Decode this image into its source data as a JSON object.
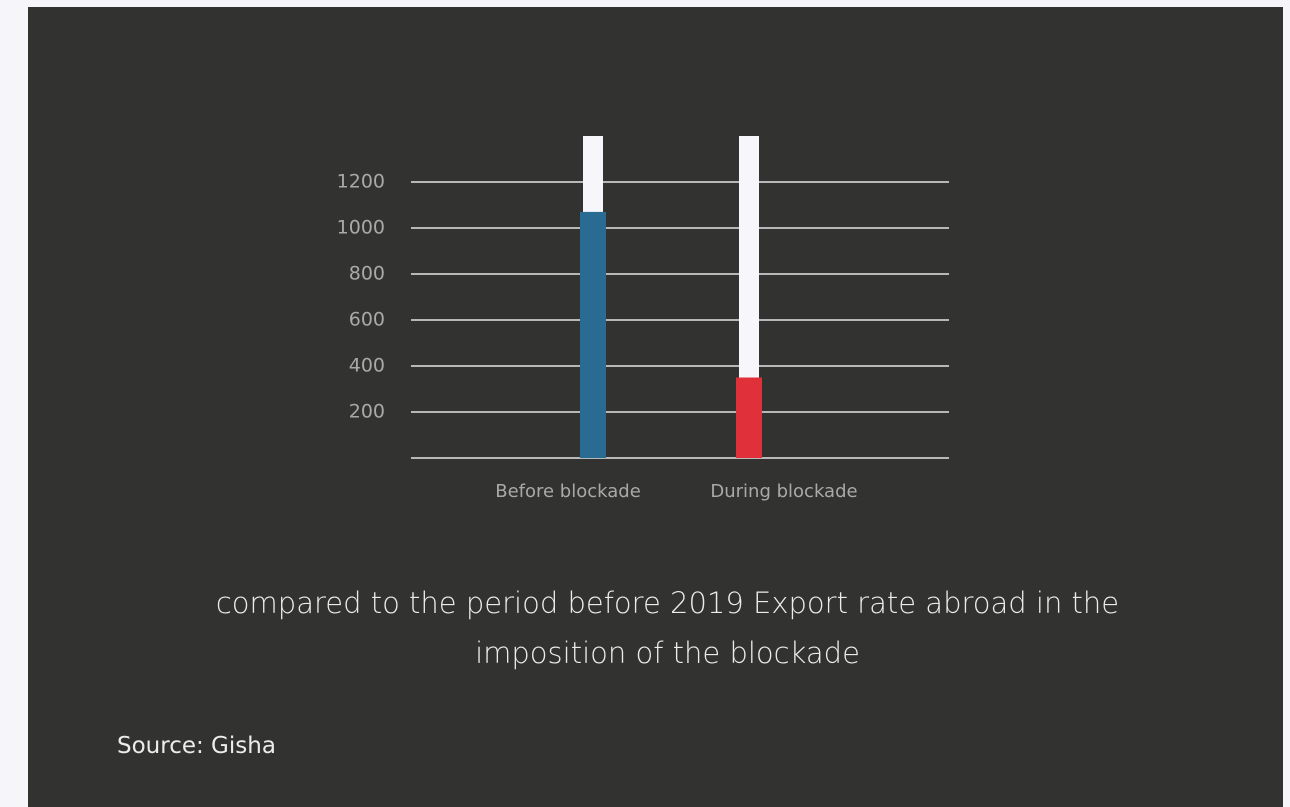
{
  "chart_data": {
    "type": "bar",
    "categories": [
      "Before blockade",
      "During blockade"
    ],
    "values": [
      1070,
      350
    ],
    "colors": [
      "#2a6b94",
      "#e0313b"
    ],
    "track_color": "#f7f7fb",
    "ylim": [
      0,
      1400
    ],
    "yticks": [
      200,
      400,
      600,
      800,
      1000,
      1200
    ],
    "grid": true,
    "caption": "compared to the period before 2019 Export rate abroad in the imposition of the blockade",
    "source": "Source: Gisha"
  }
}
